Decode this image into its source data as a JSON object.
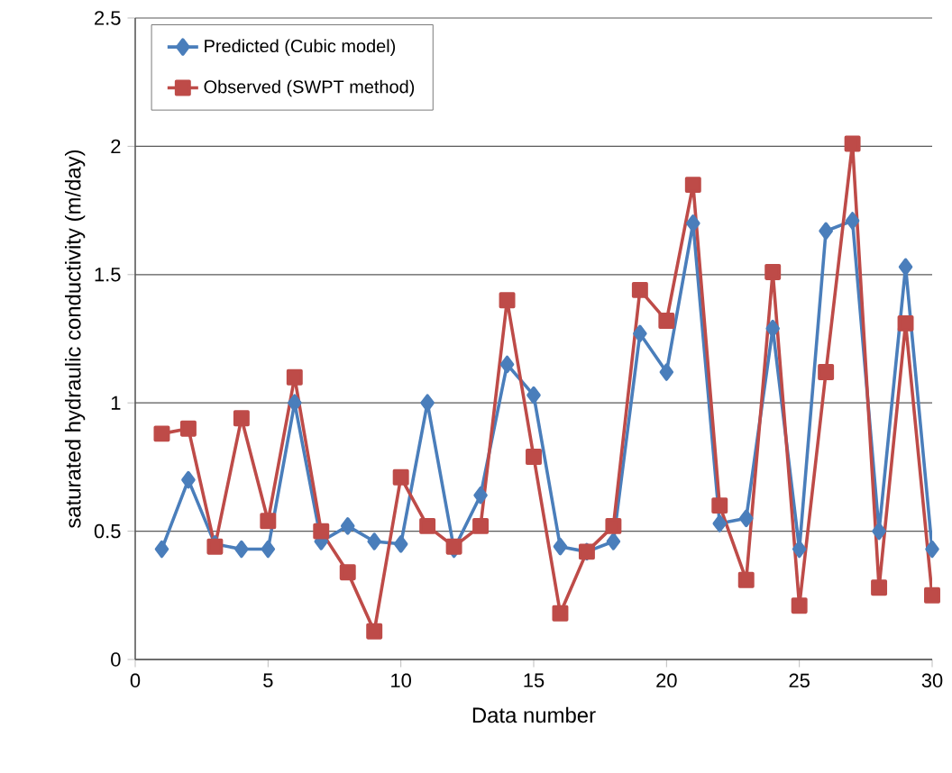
{
  "chart_data": {
    "type": "line",
    "xlabel": "Data number",
    "ylabel": "saturated hydraulic conductivity  (m/day)",
    "x": [
      1,
      2,
      3,
      4,
      5,
      6,
      7,
      8,
      9,
      10,
      11,
      12,
      13,
      14,
      15,
      16,
      17,
      18,
      19,
      20,
      21,
      22,
      23,
      24,
      25,
      26,
      27,
      28,
      29,
      30
    ],
    "series": [
      {
        "name": "Predicted (Cubic model)",
        "color": "#4a7ebb",
        "marker": "diamond",
        "values": [
          0.43,
          0.7,
          0.45,
          0.43,
          0.43,
          1.0,
          0.46,
          0.52,
          0.46,
          0.45,
          1.0,
          0.43,
          0.64,
          1.15,
          1.03,
          0.44,
          0.42,
          0.46,
          1.27,
          1.12,
          1.7,
          0.53,
          0.55,
          1.29,
          0.43,
          1.67,
          1.71,
          0.5,
          1.53,
          0.43
        ]
      },
      {
        "name": "Observed (SWPT method)",
        "color": "#be4b48",
        "marker": "square",
        "values": [
          0.88,
          0.9,
          0.44,
          0.94,
          0.54,
          1.1,
          0.5,
          0.34,
          0.11,
          0.71,
          0.52,
          0.44,
          0.52,
          1.4,
          0.79,
          0.18,
          0.42,
          0.52,
          1.44,
          1.32,
          1.85,
          0.6,
          0.31,
          1.51,
          0.21,
          1.12,
          2.01,
          0.28,
          1.31,
          0.25
        ]
      }
    ],
    "xlim": [
      0,
      30
    ],
    "xticks": [
      0,
      5,
      10,
      15,
      20,
      25,
      30
    ],
    "ylim": [
      0,
      2.5
    ],
    "yticks": [
      0,
      0.5,
      1,
      1.5,
      2,
      2.5
    ],
    "grid": "y",
    "legend": "top left",
    "line_style": "solid"
  }
}
